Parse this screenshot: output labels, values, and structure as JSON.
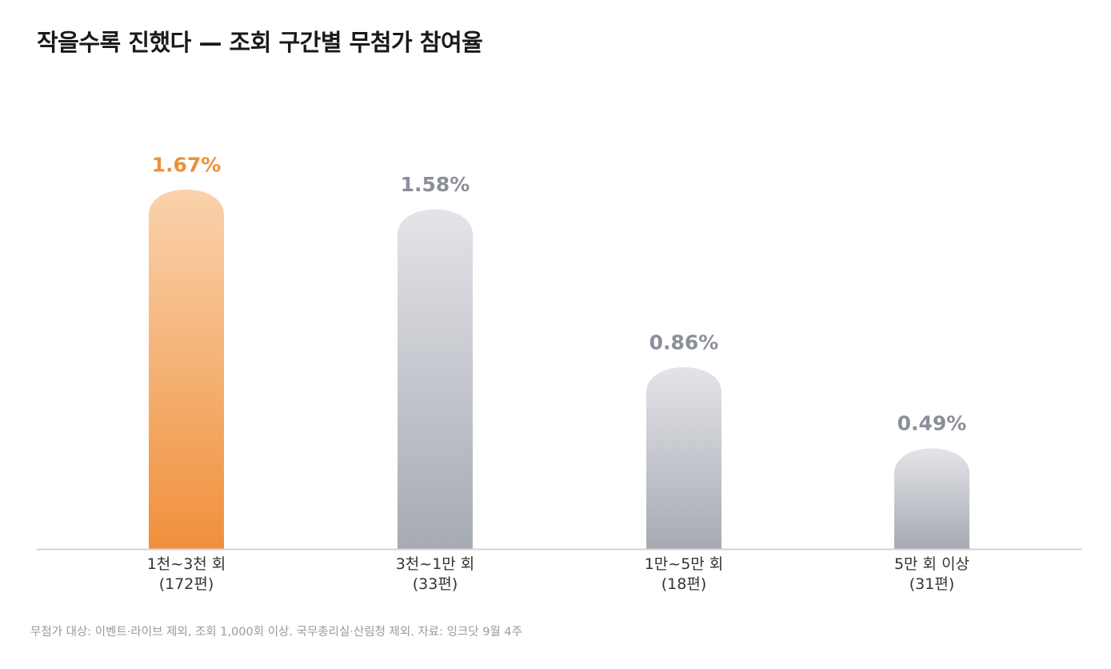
{
  "title": "작을수록 진했다 — 조회 구간별 무첨가 참여율",
  "footnote": "무첨가 대상: 이벤트·라이브 제외, 조회 1,000회 이상. 국무총리실·산림청 제외. 자료: 잉크닷 9월 4주",
  "colors": {
    "highlight": "#f0903c",
    "highlight_light": "#f9d2ac",
    "default": "#a6aab3",
    "default_light": "#e3e4e8",
    "highlight_label": "#ef8f3a",
    "default_label": "#8b8f99",
    "axis": "#d4d4d4",
    "category_label": "#333333"
  },
  "chart_data": {
    "type": "bar",
    "categories": [
      {
        "label": "1천~3천 회",
        "count": "(172편)"
      },
      {
        "label": "3천~1만 회",
        "count": "(33편)"
      },
      {
        "label": "1만~5만 회",
        "count": "(18편)"
      },
      {
        "label": "5만 회 이상",
        "count": "(31편)"
      }
    ],
    "values": [
      1.67,
      1.58,
      0.86,
      0.49
    ],
    "value_labels": [
      "1.67%",
      "1.58%",
      "0.86%",
      "0.49%"
    ],
    "highlight_index": 0,
    "unit": "%",
    "ylim": [
      0,
      1.7
    ]
  }
}
